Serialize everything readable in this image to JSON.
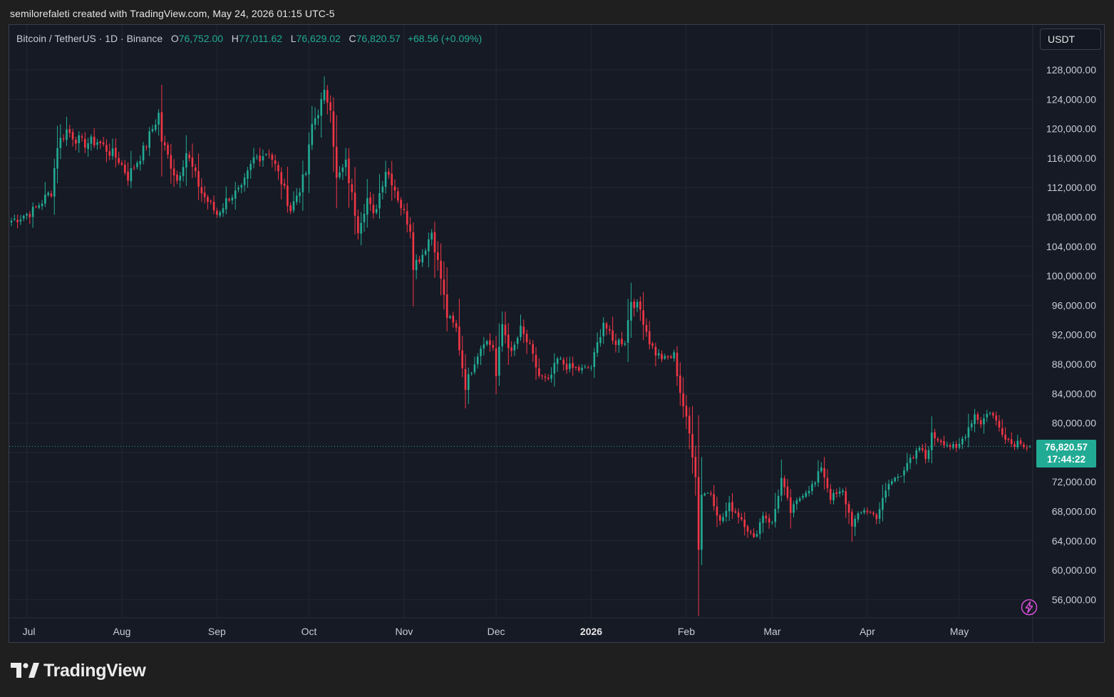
{
  "header": {
    "caption": "semilorefaleti created with TradingView.com, May 24, 2026 01:15 UTC-5"
  },
  "legend": {
    "symbol": "Bitcoin / TetherUS · 1D · Binance",
    "open_label": "O",
    "open": "76,752.00",
    "high_label": "H",
    "high": "77,011.62",
    "low_label": "L",
    "low": "76,629.02",
    "close_label": "C",
    "close": "76,820.57",
    "change": "+68.56 (+0.09%)"
  },
  "currency": "USDT",
  "last_price": {
    "price": "76,820.57",
    "countdown": "17:44:22"
  },
  "brand": {
    "name": "TradingView"
  },
  "icons": {
    "logo": "tradingview-logo-icon",
    "bolt": "lightning-bolt-icon"
  },
  "colors": {
    "up": "#22ab94",
    "down": "#f23645",
    "background": "#161a25",
    "grid": "#232733",
    "axis_text": "#c9ccd4",
    "bolt": "#d64fd8"
  },
  "chart_data": {
    "type": "candlestick",
    "title": "Bitcoin / TetherUS · 1D · Binance",
    "ylim": [
      53500,
      131500
    ],
    "y_ticks": [
      56000,
      60000,
      64000,
      68000,
      72000,
      76000,
      80000,
      84000,
      88000,
      92000,
      96000,
      100000,
      104000,
      108000,
      112000,
      116000,
      120000,
      124000,
      128000
    ],
    "x_ticks": [
      {
        "label": "Jul",
        "date": "2025-07-01",
        "bold": false
      },
      {
        "label": "Aug",
        "date": "2025-08-01",
        "bold": false
      },
      {
        "label": "Sep",
        "date": "2025-09-01",
        "bold": false
      },
      {
        "label": "Oct",
        "date": "2025-10-01",
        "bold": false
      },
      {
        "label": "Nov",
        "date": "2025-11-01",
        "bold": false
      },
      {
        "label": "Dec",
        "date": "2025-12-01",
        "bold": false
      },
      {
        "label": "2026",
        "date": "2026-01-01",
        "bold": true
      },
      {
        "label": "Feb",
        "date": "2026-02-01",
        "bold": false
      },
      {
        "label": "Mar",
        "date": "2026-03-01",
        "bold": false
      },
      {
        "label": "Apr",
        "date": "2026-04-01",
        "bold": false
      },
      {
        "label": "May",
        "date": "2026-05-01",
        "bold": false
      }
    ],
    "first_date": "2025-06-26",
    "last_date": "2026-05-24",
    "close_waypoints": [
      [
        "2025-06-26",
        107500
      ],
      [
        "2025-07-03",
        108800
      ],
      [
        "2025-07-09",
        111500
      ],
      [
        "2025-07-11",
        117800
      ],
      [
        "2025-07-14",
        119800
      ],
      [
        "2025-07-19",
        118000
      ],
      [
        "2025-07-24",
        118300
      ],
      [
        "2025-07-31",
        115800
      ],
      [
        "2025-08-03",
        113500
      ],
      [
        "2025-08-08",
        117000
      ],
      [
        "2025-08-13",
        122000
      ],
      [
        "2025-08-14",
        118400
      ],
      [
        "2025-08-19",
        113000
      ],
      [
        "2025-08-22",
        116800
      ],
      [
        "2025-08-27",
        111300
      ],
      [
        "2025-09-01",
        108400
      ],
      [
        "2025-09-05",
        110800
      ],
      [
        "2025-09-09",
        111600
      ],
      [
        "2025-09-13",
        115900
      ],
      [
        "2025-09-18",
        117000
      ],
      [
        "2025-09-22",
        112800
      ],
      [
        "2025-09-25",
        109000
      ],
      [
        "2025-09-30",
        114000
      ],
      [
        "2025-10-02",
        120500
      ],
      [
        "2025-10-05",
        123500
      ],
      [
        "2025-10-06",
        124600
      ],
      [
        "2025-10-08",
        123300
      ],
      [
        "2025-10-10",
        113000
      ],
      [
        "2025-10-13",
        115200
      ],
      [
        "2025-10-17",
        106500
      ],
      [
        "2025-10-20",
        110500
      ],
      [
        "2025-10-22",
        108000
      ],
      [
        "2025-10-26",
        114500
      ],
      [
        "2025-10-28",
        113000
      ],
      [
        "2025-10-31",
        109500
      ],
      [
        "2025-11-03",
        106500
      ],
      [
        "2025-11-04",
        101500
      ],
      [
        "2025-11-07",
        103000
      ],
      [
        "2025-11-10",
        106000
      ],
      [
        "2025-11-13",
        99700
      ],
      [
        "2025-11-15",
        94500
      ],
      [
        "2025-11-18",
        92800
      ],
      [
        "2025-11-21",
        85000
      ],
      [
        "2025-11-24",
        88500
      ],
      [
        "2025-11-27",
        91300
      ],
      [
        "2025-11-30",
        90400
      ],
      [
        "2025-12-01",
        86300
      ],
      [
        "2025-12-03",
        93400
      ],
      [
        "2025-12-06",
        89300
      ],
      [
        "2025-12-09",
        92700
      ],
      [
        "2025-12-12",
        90200
      ],
      [
        "2025-12-15",
        86400
      ],
      [
        "2025-12-18",
        85500
      ],
      [
        "2025-12-21",
        88600
      ],
      [
        "2025-12-25",
        87500
      ],
      [
        "2025-12-29",
        87200
      ],
      [
        "2026-01-01",
        87600
      ],
      [
        "2026-01-05",
        93800
      ],
      [
        "2026-01-08",
        91000
      ],
      [
        "2026-01-12",
        91200
      ],
      [
        "2026-01-14",
        96700
      ],
      [
        "2026-01-17",
        95400
      ],
      [
        "2026-01-20",
        91100
      ],
      [
        "2026-01-22",
        89500
      ],
      [
        "2026-01-25",
        88600
      ],
      [
        "2026-01-28",
        89200
      ],
      [
        "2026-01-30",
        84300
      ],
      [
        "2026-02-02",
        78500
      ],
      [
        "2026-02-04",
        73000
      ],
      [
        "2026-02-05",
        62800
      ],
      [
        "2026-02-06",
        70500
      ],
      [
        "2026-02-09",
        70500
      ],
      [
        "2026-02-12",
        66500
      ],
      [
        "2026-02-15",
        68800
      ],
      [
        "2026-02-19",
        67000
      ],
      [
        "2026-02-23",
        64200
      ],
      [
        "2026-02-26",
        67600
      ],
      [
        "2026-03-01",
        66300
      ],
      [
        "2026-03-04",
        72400
      ],
      [
        "2026-03-07",
        67900
      ],
      [
        "2026-03-11",
        70500
      ],
      [
        "2026-03-15",
        71800
      ],
      [
        "2026-03-17",
        74200
      ],
      [
        "2026-03-20",
        69900
      ],
      [
        "2026-03-24",
        70600
      ],
      [
        "2026-03-27",
        66300
      ],
      [
        "2026-03-31",
        68300
      ],
      [
        "2026-04-04",
        67300
      ],
      [
        "2026-04-08",
        71700
      ],
      [
        "2026-04-12",
        73200
      ],
      [
        "2026-04-14",
        74700
      ],
      [
        "2026-04-16",
        75000
      ],
      [
        "2026-04-18",
        76700
      ],
      [
        "2026-04-20",
        75200
      ],
      [
        "2026-04-22",
        78300
      ],
      [
        "2026-04-26",
        77500
      ],
      [
        "2026-04-30",
        76300
      ],
      [
        "2026-05-03",
        78600
      ],
      [
        "2026-05-06",
        81200
      ],
      [
        "2026-05-08",
        80100
      ],
      [
        "2026-05-11",
        81700
      ],
      [
        "2026-05-14",
        79400
      ],
      [
        "2026-05-18",
        77200
      ],
      [
        "2026-05-21",
        77600
      ],
      [
        "2026-05-23",
        76752
      ],
      [
        "2026-05-24",
        76820.57
      ]
    ],
    "last_candle": {
      "open": 76752.0,
      "high": 77011.62,
      "low": 76629.02,
      "close": 76820.57
    },
    "last_price_line": 76820.57,
    "grid": true
  }
}
